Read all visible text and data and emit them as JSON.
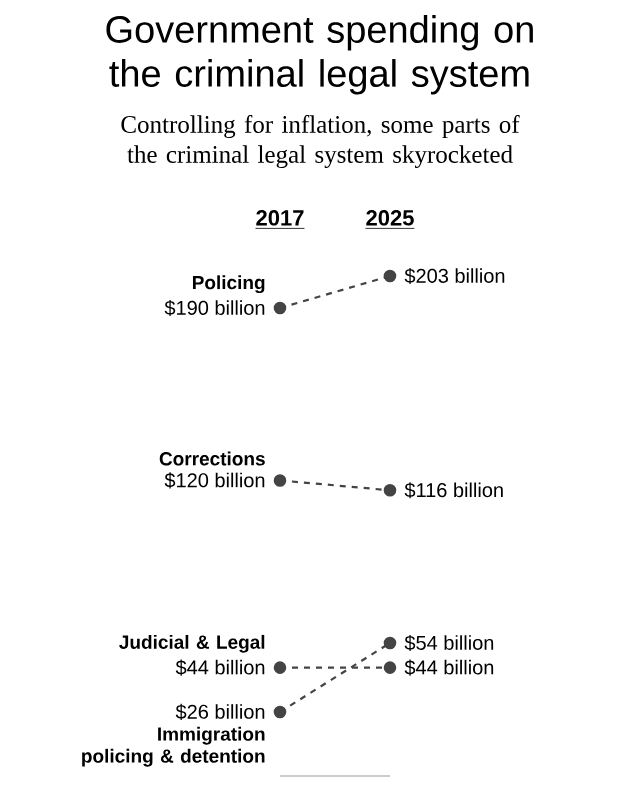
{
  "chart_data": {
    "type": "line",
    "title": "Government spending on the criminal legal system",
    "subtitle": "Controlling for inflation, some parts of the criminal legal system skyrocketed",
    "categories": [
      "2017",
      "2025"
    ],
    "series": [
      {
        "name": "Policing",
        "color": "#444444",
        "values": [
          190,
          203
        ],
        "value_labels": [
          "$190 billion",
          "$203 billion"
        ]
      },
      {
        "name": "Corrections",
        "color": "#444444",
        "values": [
          120,
          116
        ],
        "value_labels": [
          "$120 billion",
          "$116 billion"
        ]
      },
      {
        "name": "Judicial & Legal",
        "color": "#444444",
        "values": [
          44,
          44
        ],
        "value_labels": [
          "$44 billion",
          "$44 billion"
        ]
      },
      {
        "name": "Immigration policing & detention",
        "color": "#444444",
        "values": [
          26,
          54
        ],
        "value_labels": [
          "$26 billion",
          "$54 billion"
        ]
      }
    ],
    "ref_lines": [
      {
        "axis": "y",
        "value": 0,
        "color": "#bbbbbb"
      }
    ],
    "marker": "circle",
    "line_style": "dashed",
    "legend": false,
    "tick_labels": "x"
  }
}
